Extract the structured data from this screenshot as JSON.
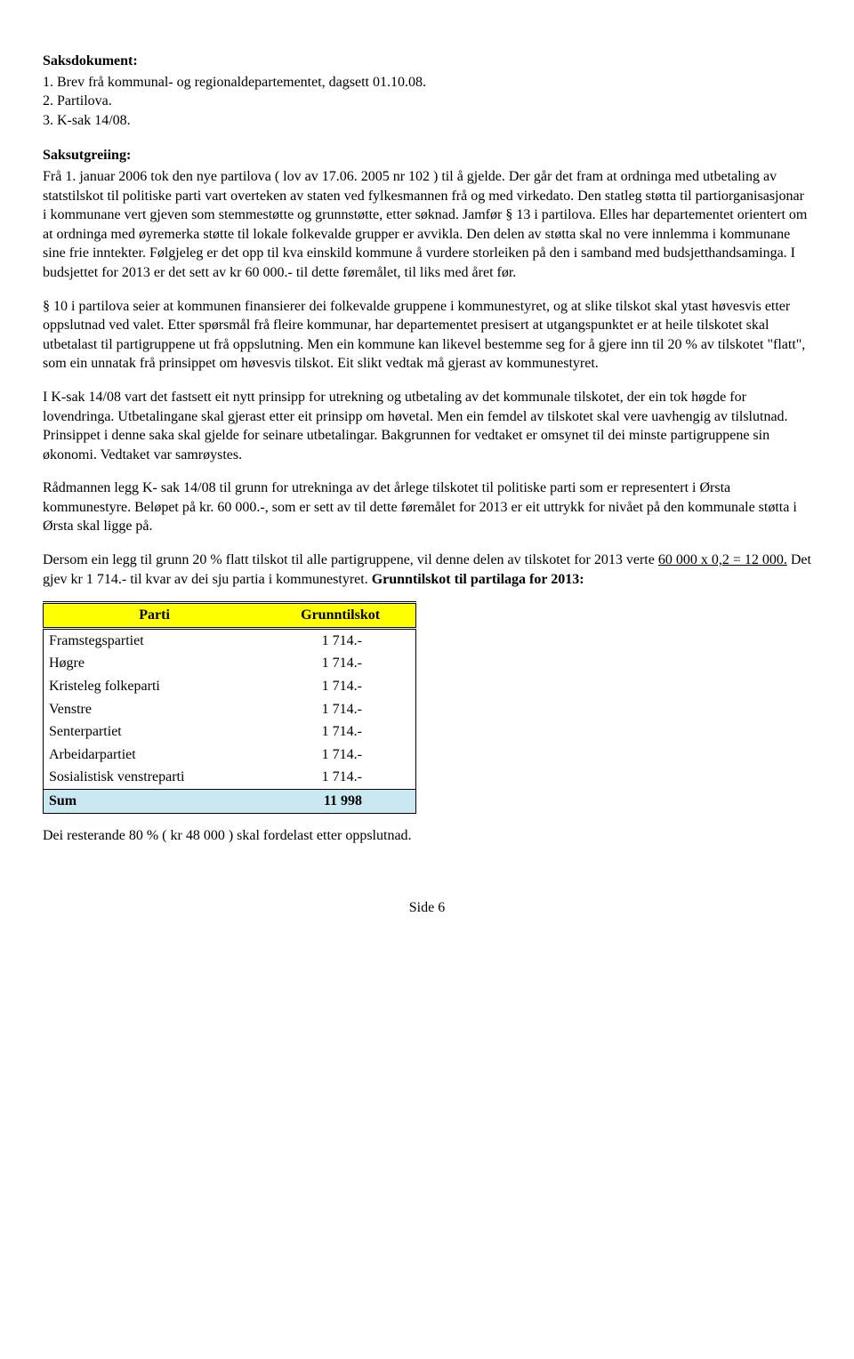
{
  "headings": {
    "saksdokument": "Saksdokument:",
    "saksutgreiing": "Saksutgreiing:"
  },
  "doc_list": [
    "1. Brev frå kommunal- og regionaldepartementet, dagsett 01.10.08.",
    "2. Partilova.",
    "3. K-sak 14/08."
  ],
  "paragraphs": {
    "p1": "Frå 1. januar 2006 tok den nye partilova ( lov av 17.06. 2005 nr 102 ) til å gjelde. Der går det fram at ordninga med utbetaling av statstilskot til politiske parti vart overteken av staten ved fylkesmannen frå og med virkedato. Den statleg støtta til partiorganisasjonar i kommunane vert gjeven som stemmestøtte og grunnstøtte, etter søknad. Jamfør § 13 i partilova. Elles har departementet orientert om at ordninga med øyremerka støtte til lokale folkevalde grupper er avvikla. Den delen av støtta skal no vere innlemma i kommunane sine frie inntekter. Følgjeleg er det opp til kva einskild kommune å vurdere storleiken på den i samband med budsjetthandsaminga. I budsjettet for 2013 er det sett av kr 60 000.- til dette føremålet, til liks med året før.",
    "p2": "§ 10 i partilova seier at kommunen finansierer dei folkevalde gruppene i kommunestyret, og at slike tilskot skal ytast høvesvis etter oppslutnad ved valet. Etter spørsmål frå fleire kommunar, har departementet presisert at utgangspunktet er at heile tilskotet skal utbetalast til partigruppene ut frå oppslutning. Men ein kommune kan likevel bestemme seg for å gjere inn til 20 % av tilskotet \"flatt\", som ein unnatak frå prinsippet om høvesvis tilskot. Eit slikt vedtak må gjerast av kommunestyret.",
    "p3": "I K-sak 14/08 vart det fastsett eit nytt prinsipp for utrekning og utbetaling av det kommunale tilskotet, der ein tok høgde for lovendringa. Utbetalingane skal gjerast etter eit prinsipp om høvetal. Men ein femdel av tilskotet skal vere uavhengig av tilslutnad. Prinsippet i denne saka skal gjelde for seinare utbetalingar. Bakgrunnen for vedtaket er omsynet til dei minste partigruppene sin økonomi. Vedtaket var samrøystes.",
    "p4": "Rådmannen legg K- sak 14/08 til grunn for utrekninga av det årlege tilskotet til politiske parti som er representert i Ørsta kommunestyre. Beløpet på kr. 60 000.-, som er sett av til dette føremålet for 2013 er eit uttrykk for nivået på den kommunale støtta i Ørsta skal ligge på.",
    "p5_before": "Dersom ein legg til grunn 20 % flatt tilskot til alle partigruppene, vil denne delen av tilskotet for 2013 verte ",
    "p5_underlined": "60 000 x 0,2   = 12 000.",
    "p5_after": " Det gjev kr 1 714.- til kvar av dei sju partia i kommunestyret. ",
    "p5_bold": "Grunntilskot til partilaga for 2013:",
    "p_footer": "Dei resterande 80 %  ( kr 48 000 ) skal fordelast etter oppslutnad."
  },
  "table": {
    "header_col1": "Parti",
    "header_col2": "Grunntilskot",
    "header_bg": "#ffff00",
    "sum_bg": "#c9e8f2",
    "rows": [
      {
        "name": "Framstegspartiet",
        "value": "1 714.-"
      },
      {
        "name": "Høgre",
        "value": "1 714.-"
      },
      {
        "name": "Kristeleg folkeparti",
        "value": "1 714.-"
      },
      {
        "name": "Venstre",
        "value": "1 714.-"
      },
      {
        "name": "Senterpartiet",
        "value": "1 714.-"
      },
      {
        "name": "Arbeidarpartiet",
        "value": "1 714.-"
      },
      {
        "name": "Sosialistisk venstreparti",
        "value": "1 714.-"
      }
    ],
    "sum_label": "Sum",
    "sum_value": "11 998"
  },
  "footer": "Side 6"
}
